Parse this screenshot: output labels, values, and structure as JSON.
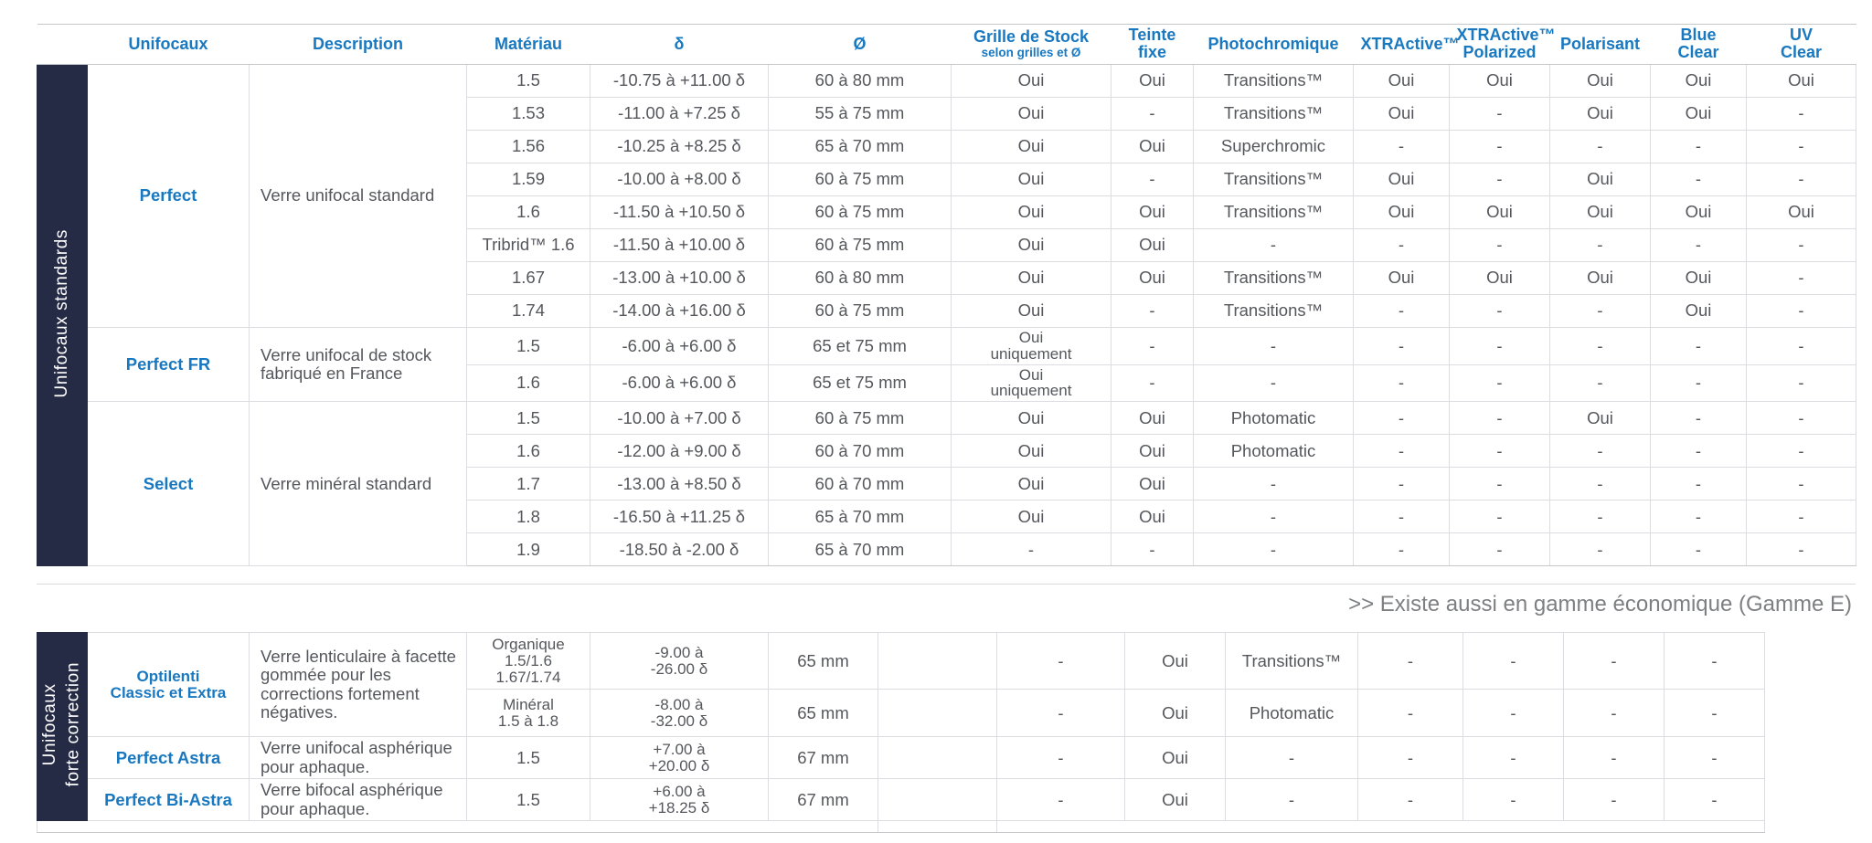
{
  "colors": {
    "accent": "#1878c0",
    "sidebar_bg": "#252a45",
    "body_text": "#55575c",
    "note_text": "#7d7f82"
  },
  "note": ">> Existe aussi en gamme économique (Gamme E)",
  "table1": {
    "section_label": "Unifocaux standards",
    "columns": [
      {
        "label": "Unifocaux"
      },
      {
        "label": "Description"
      },
      {
        "label": "Matériau"
      },
      {
        "label": "δ"
      },
      {
        "label": "Ø"
      },
      {
        "label": "Grille de Stock",
        "sub": "selon grilles et Ø"
      },
      {
        "label": "Teinte\nfixe"
      },
      {
        "label": "Photochromique"
      },
      {
        "label": "XTRActive™"
      },
      {
        "label": "XTRActive™\nPolarized"
      },
      {
        "label": "Polarisant"
      },
      {
        "label": "Blue\nClear"
      },
      {
        "label": "UV\nClear"
      }
    ],
    "groups": [
      {
        "name": "Perfect",
        "description": "Verre unifocal standard",
        "rows": [
          {
            "materiau": "1.5",
            "delta": "-10.75 à +11.00 δ",
            "diam": "60 à 80 mm",
            "grille": "Oui",
            "teinte": "Oui",
            "photo": "Transitions™",
            "xtractive": "Oui",
            "xtractive_polarized": "Oui",
            "polarisant": "Oui",
            "blue_clear": "Oui",
            "uv_clear": "Oui"
          },
          {
            "materiau": "1.53",
            "delta": "-11.00 à +7.25 δ",
            "diam": "55 à 75 mm",
            "grille": "Oui",
            "teinte": "-",
            "photo": "Transitions™",
            "xtractive": "Oui",
            "xtractive_polarized": "-",
            "polarisant": "Oui",
            "blue_clear": "Oui",
            "uv_clear": "-"
          },
          {
            "materiau": "1.56",
            "delta": "-10.25 à +8.25 δ",
            "diam": "65 à 70 mm",
            "grille": "Oui",
            "teinte": "Oui",
            "photo": "Superchromic",
            "xtractive": "-",
            "xtractive_polarized": "-",
            "polarisant": "-",
            "blue_clear": "-",
            "uv_clear": "-"
          },
          {
            "materiau": "1.59",
            "delta": "-10.00 à +8.00 δ",
            "diam": "60 à 75 mm",
            "grille": "Oui",
            "teinte": "-",
            "photo": "Transitions™",
            "xtractive": "Oui",
            "xtractive_polarized": "-",
            "polarisant": "Oui",
            "blue_clear": "-",
            "uv_clear": "-"
          },
          {
            "materiau": "1.6",
            "delta": "-11.50 à +10.50 δ",
            "diam": "60 à 75 mm",
            "grille": "Oui",
            "teinte": "Oui",
            "photo": "Transitions™",
            "xtractive": "Oui",
            "xtractive_polarized": "Oui",
            "polarisant": "Oui",
            "blue_clear": "Oui",
            "uv_clear": "Oui"
          },
          {
            "materiau": "Tribrid™ 1.6",
            "delta": "-11.50 à +10.00 δ",
            "diam": "60 à 75 mm",
            "grille": "Oui",
            "teinte": "Oui",
            "photo": "-",
            "xtractive": "-",
            "xtractive_polarized": "-",
            "polarisant": "-",
            "blue_clear": "-",
            "uv_clear": "-"
          },
          {
            "materiau": "1.67",
            "delta": "-13.00 à +10.00 δ",
            "diam": "60 à 80 mm",
            "grille": "Oui",
            "teinte": "Oui",
            "photo": "Transitions™",
            "xtractive": "Oui",
            "xtractive_polarized": "Oui",
            "polarisant": "Oui",
            "blue_clear": "Oui",
            "uv_clear": "-"
          },
          {
            "materiau": "1.74",
            "delta": "-14.00 à +16.00 δ",
            "diam": "60 à 75 mm",
            "grille": "Oui",
            "teinte": "-",
            "photo": "Transitions™",
            "xtractive": "-",
            "xtractive_polarized": "-",
            "polarisant": "-",
            "blue_clear": "Oui",
            "uv_clear": "-"
          }
        ]
      },
      {
        "name": "Perfect FR",
        "description": "Verre unifocal de stock fabriqué en France",
        "rows": [
          {
            "materiau": "1.5",
            "delta": "-6.00 à +6.00 δ",
            "diam": "65 et 75 mm",
            "grille": "Oui\nuniquement",
            "teinte": "-",
            "photo": "-",
            "xtractive": "-",
            "xtractive_polarized": "-",
            "polarisant": "-",
            "blue_clear": "-",
            "uv_clear": "-"
          },
          {
            "materiau": "1.6",
            "delta": "-6.00 à +6.00 δ",
            "diam": "65 et 75 mm",
            "grille": "Oui\nuniquement",
            "teinte": "-",
            "photo": "-",
            "xtractive": "-",
            "xtractive_polarized": "-",
            "polarisant": "-",
            "blue_clear": "-",
            "uv_clear": "-"
          }
        ]
      },
      {
        "name": "Select",
        "description": "Verre minéral standard",
        "rows": [
          {
            "materiau": "1.5",
            "delta": "-10.00 à +7.00 δ",
            "diam": "60 à 75 mm",
            "grille": "Oui",
            "teinte": "Oui",
            "photo": "Photomatic",
            "xtractive": "-",
            "xtractive_polarized": "-",
            "polarisant": "Oui",
            "blue_clear": "-",
            "uv_clear": "-"
          },
          {
            "materiau": "1.6",
            "delta": "-12.00 à +9.00 δ",
            "diam": "60 à 70 mm",
            "grille": "Oui",
            "teinte": "Oui",
            "photo": "Photomatic",
            "xtractive": "-",
            "xtractive_polarized": "-",
            "polarisant": "-",
            "blue_clear": "-",
            "uv_clear": "-"
          },
          {
            "materiau": "1.7",
            "delta": "-13.00 à +8.50 δ",
            "diam": "60 à 70 mm",
            "grille": "Oui",
            "teinte": "Oui",
            "photo": "-",
            "xtractive": "-",
            "xtractive_polarized": "-",
            "polarisant": "-",
            "blue_clear": "-",
            "uv_clear": "-"
          },
          {
            "materiau": "1.8",
            "delta": "-16.50 à +11.25 δ",
            "diam": "65 à 70 mm",
            "grille": "Oui",
            "teinte": "Oui",
            "photo": "-",
            "xtractive": "-",
            "xtractive_polarized": "-",
            "polarisant": "-",
            "blue_clear": "-",
            "uv_clear": "-"
          },
          {
            "materiau": "1.9",
            "delta": "-18.50 à -2.00 δ",
            "diam": "65 à 70 mm",
            "grille": "-",
            "teinte": "-",
            "photo": "-",
            "xtractive": "-",
            "xtractive_polarized": "-",
            "polarisant": "-",
            "blue_clear": "-",
            "uv_clear": "-"
          }
        ]
      }
    ]
  },
  "table2": {
    "section_label": "Unifocaux\nforte correction",
    "groups": [
      {
        "name": "Optilenti\nClassic et Extra",
        "description": "Verre lenticulaire à facette gommée pour les corrections fortement négatives.",
        "rows": [
          {
            "materiau": "Organique\n1.5/1.6\n1.67/1.74",
            "delta": "-9.00 à\n-26.00 δ",
            "diam": "65 mm",
            "spacer": "",
            "grille": "-",
            "teinte": "Oui",
            "photo": "Transitions™",
            "xtractive": "-",
            "xtractive_polarized": "-",
            "polarisant": "-",
            "blue_clear": "-"
          },
          {
            "materiau": "Minéral\n1.5 à 1.8",
            "delta": "-8.00 à\n-32.00 δ",
            "diam": "65 mm",
            "spacer": "",
            "grille": "-",
            "teinte": "Oui",
            "photo": "Photomatic",
            "xtractive": "-",
            "xtractive_polarized": "-",
            "polarisant": "-",
            "blue_clear": "-"
          }
        ]
      },
      {
        "name": "Perfect Astra",
        "description": "Verre unifocal asphérique pour aphaque.",
        "rows": [
          {
            "materiau": "1.5",
            "delta": "+7.00 à\n+20.00 δ",
            "diam": "67 mm",
            "spacer": "",
            "grille": "-",
            "teinte": "Oui",
            "photo": "-",
            "xtractive": "-",
            "xtractive_polarized": "-",
            "polarisant": "-",
            "blue_clear": "-"
          }
        ]
      },
      {
        "name": "Perfect Bi-Astra",
        "description": "Verre bifocal asphérique pour aphaque.",
        "rows": [
          {
            "materiau": "1.5",
            "delta": "+6.00 à\n+18.25 δ",
            "diam": "67 mm",
            "spacer": "",
            "grille": "-",
            "teinte": "Oui",
            "photo": "-",
            "xtractive": "-",
            "xtractive_polarized": "-",
            "polarisant": "-",
            "blue_clear": "-"
          }
        ]
      }
    ]
  }
}
